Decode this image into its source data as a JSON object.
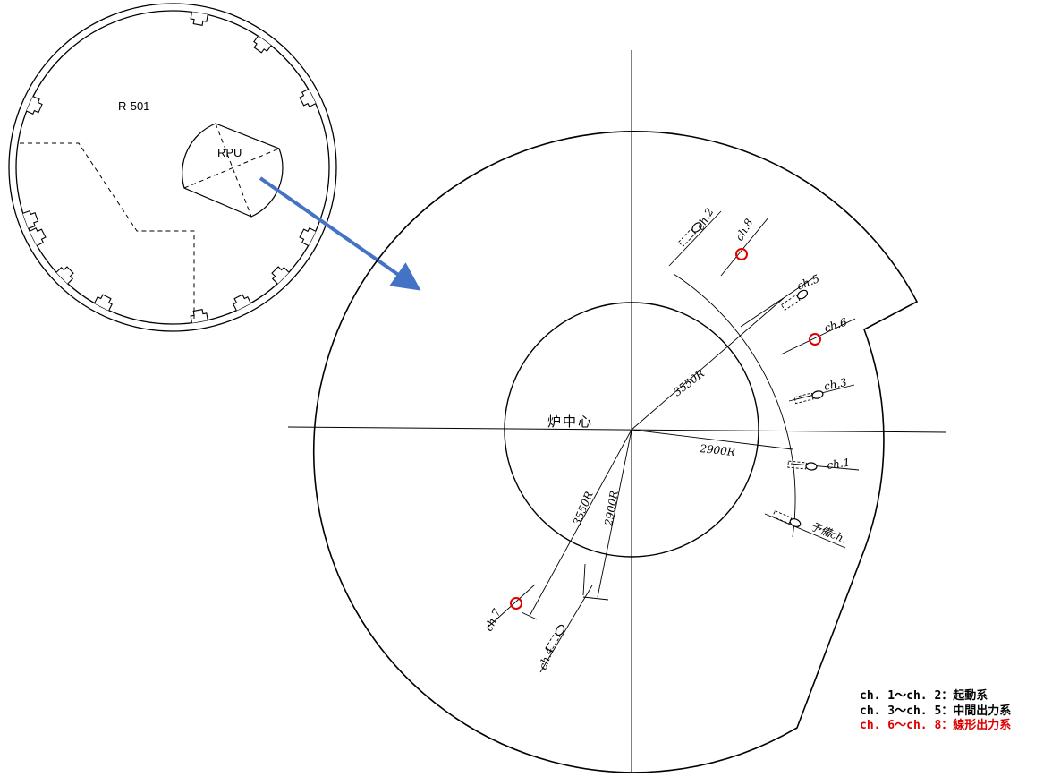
{
  "colors": {
    "line": "#000000",
    "arrow": "#4472C4",
    "highlight": "#E00000"
  },
  "inset": {
    "room_label": "R-501",
    "unit_label": "RPU"
  },
  "diagram": {
    "center_label": "炉中心",
    "radius_labels": {
      "upper_outer": "3550R",
      "upper_inner": "2900R",
      "lower_outer": "3550R",
      "lower_inner": "2900R"
    },
    "channels": [
      {
        "label": "ch.2",
        "system": "startup",
        "highlighted": false
      },
      {
        "label": "ch.8",
        "system": "linear",
        "highlighted": true
      },
      {
        "label": "ch.5",
        "system": "intermediate",
        "highlighted": false
      },
      {
        "label": "ch.6",
        "system": "linear",
        "highlighted": true
      },
      {
        "label": "ch.3",
        "system": "intermediate",
        "highlighted": false
      },
      {
        "label": "ch.1",
        "system": "startup",
        "highlighted": false
      },
      {
        "label": "予備ch.",
        "system": "spare",
        "highlighted": false
      },
      {
        "label": "ch.7",
        "system": "linear",
        "highlighted": true
      },
      {
        "label": "ch.4",
        "system": "intermediate",
        "highlighted": false
      }
    ]
  },
  "legend": {
    "line1": "ch. 1～ch. 2：起動系",
    "line2": "ch. 3～ch. 5：中間出力系",
    "line3": "ch. 6～ch. 8：線形出力系"
  }
}
